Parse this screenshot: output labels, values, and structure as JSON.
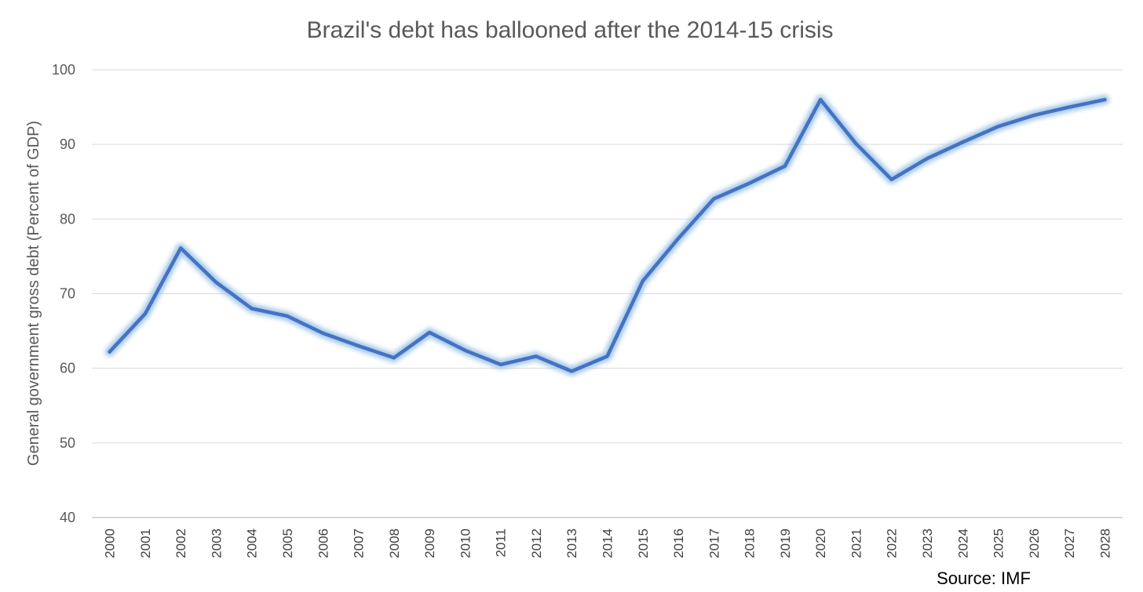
{
  "chart_data": {
    "type": "line",
    "title": "Brazil's debt has ballooned after the 2014-15 crisis",
    "xlabel": "",
    "ylabel": "General government gross debt (Percent of GDP)",
    "source": "Source: IMF",
    "ylim": [
      40,
      100
    ],
    "yticks": [
      40,
      50,
      60,
      70,
      80,
      90,
      100
    ],
    "grid": true,
    "legend": "none",
    "line_color": "#4472C4",
    "glow_color": "#9DC3E6",
    "categories": [
      "2000",
      "2001",
      "2002",
      "2003",
      "2004",
      "2005",
      "2006",
      "2007",
      "2008",
      "2009",
      "2010",
      "2011",
      "2012",
      "2013",
      "2014",
      "2015",
      "2016",
      "2017",
      "2018",
      "2019",
      "2020",
      "2021",
      "2022",
      "2023",
      "2024",
      "2025",
      "2026",
      "2027",
      "2028"
    ],
    "series": [
      {
        "values": [
          62.2,
          67.3,
          76.1,
          71.5,
          68.0,
          67.0,
          64.7,
          63.0,
          61.4,
          64.8,
          62.4,
          60.5,
          61.6,
          59.6,
          61.6,
          71.7,
          77.4,
          82.7,
          84.8,
          87.1,
          96.0,
          90.1,
          85.3,
          88.1,
          90.3,
          92.4,
          93.9,
          95.0,
          96.0
        ]
      }
    ]
  }
}
